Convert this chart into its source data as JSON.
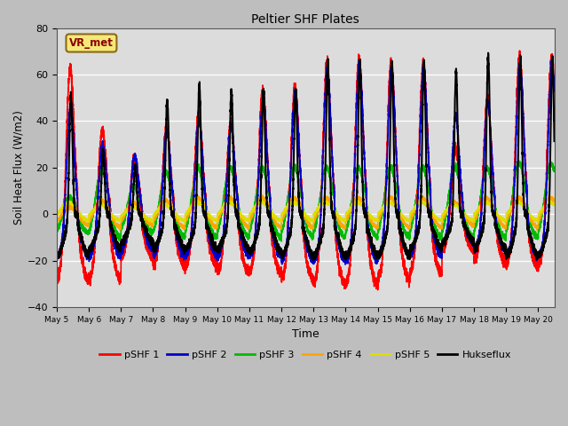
{
  "title": "Peltier SHF Plates",
  "xlabel": "Time",
  "ylabel": "Soil Heat Flux (W/m2)",
  "ylim": [
    -40,
    80
  ],
  "yticks": [
    -40,
    -20,
    0,
    20,
    40,
    60,
    80
  ],
  "xlim": [
    0,
    15.5
  ],
  "xtick_labels": [
    "May 5",
    "May 6",
    "May 7",
    "May 8",
    "May 9",
    "May 10",
    "May 11",
    "May 12",
    "May 13",
    "May 14",
    "May 15",
    "May 16",
    "May 17",
    "May 18",
    "May 19",
    "May 20"
  ],
  "xtick_positions": [
    0,
    1,
    2,
    3,
    4,
    5,
    6,
    7,
    8,
    9,
    10,
    11,
    12,
    13,
    14,
    15
  ],
  "annotation_text": "VR_met",
  "annotation_color": "#8B0000",
  "fig_bg": "#BEBEBE",
  "plot_bg": "#DCDCDC",
  "above_80_bg": "#E8E8E8",
  "series": {
    "pSHF 1": {
      "color": "#FF0000",
      "lw": 1.2
    },
    "pSHF 2": {
      "color": "#0000CC",
      "lw": 1.2
    },
    "pSHF 3": {
      "color": "#00BB00",
      "lw": 1.2
    },
    "pSHF 4": {
      "color": "#FFA500",
      "lw": 1.2
    },
    "pSHF 5": {
      "color": "#DDDD00",
      "lw": 1.2
    },
    "Hukseflux": {
      "color": "#000000",
      "lw": 1.5
    }
  }
}
